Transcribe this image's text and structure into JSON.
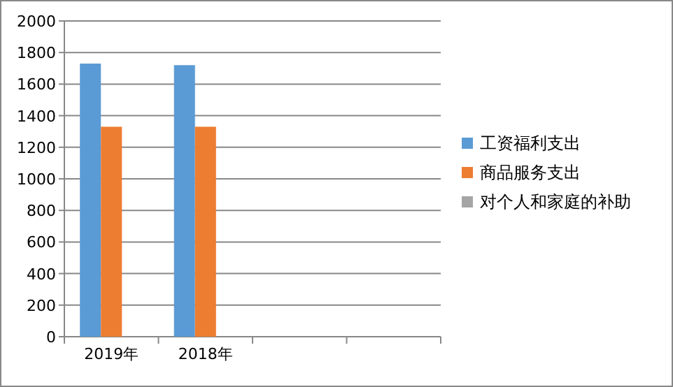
{
  "chart_data": {
    "type": "bar",
    "categories": [
      "2019年",
      "2018年",
      null,
      null
    ],
    "series": [
      {
        "name": "工资福利支出",
        "color": "#5b9bd5",
        "values": [
          1730,
          1720,
          null,
          null
        ]
      },
      {
        "name": "商品服务支出",
        "color": "#ed7d31",
        "values": [
          1330,
          1330,
          null,
          null
        ]
      },
      {
        "name": "对个人和家庭的补助",
        "color": "#a5a5a5",
        "values": [
          null,
          null,
          null,
          null
        ]
      }
    ],
    "ylim": [
      0,
      2000
    ],
    "yticks": [
      0,
      200,
      400,
      600,
      800,
      1000,
      1200,
      1400,
      1600,
      1800,
      2000
    ],
    "grid": "y",
    "legend": "right"
  }
}
